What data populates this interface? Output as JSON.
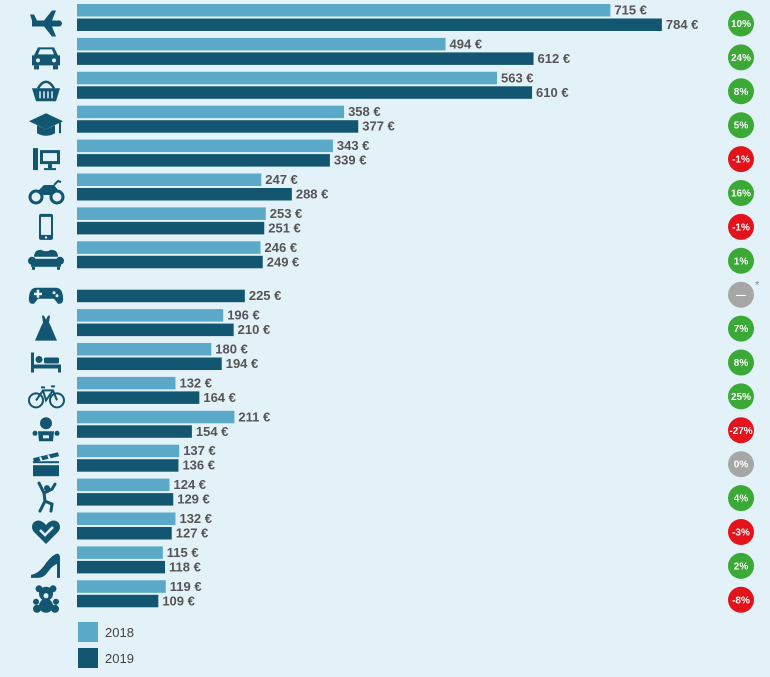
{
  "chart_data": {
    "type": "bar",
    "orientation": "horizontal",
    "categories": [
      "plane-icon",
      "car-icon",
      "shopping-basket-icon",
      "graduation-cap-icon",
      "desktop-computer-icon",
      "motorcycle-icon",
      "smartphone-icon",
      "sofa-icon",
      "gamepad-icon",
      "dress-icon",
      "bed-icon",
      "bicycle-icon",
      "baby-icon",
      "clapperboard-icon",
      "dancer-icon",
      "heart-check-icon",
      "high-heel-icon",
      "teddy-bear-icon"
    ],
    "series": [
      {
        "name": "2018",
        "color": "#5aa9c9",
        "values": [
          715,
          494,
          563,
          358,
          343,
          247,
          253,
          246,
          null,
          196,
          180,
          132,
          211,
          137,
          124,
          132,
          115,
          119
        ]
      },
      {
        "name": "2019",
        "color": "#135672",
        "values": [
          784,
          612,
          610,
          377,
          339,
          288,
          251,
          249,
          225,
          210,
          194,
          164,
          154,
          136,
          129,
          127,
          118,
          109
        ]
      }
    ],
    "value_labels_2018": [
      "715 €",
      "494 €",
      "563 €",
      "358 €",
      "343 €",
      "247 €",
      "253 €",
      "246 €",
      "",
      "196 €",
      "180 €",
      "132 €",
      "211 €",
      "137 €",
      "124 €",
      "132 €",
      "115 €",
      "119 €"
    ],
    "value_labels_2019": [
      "784 €",
      "612 €",
      "610 €",
      "377 €",
      "339 €",
      "288 €",
      "251 €",
      "249 €",
      "225 €",
      "210 €",
      "194 €",
      "164 €",
      "154 €",
      "136 €",
      "129 €",
      "127 €",
      "118 €",
      "109 €"
    ],
    "change_labels": [
      "10%",
      "24%",
      "8%",
      "5%",
      "-1%",
      "16%",
      "-1%",
      "1%",
      "—",
      "7%",
      "8%",
      "25%",
      "-27%",
      "0%",
      "4%",
      "-3%",
      "2%",
      "-8%"
    ],
    "change_colors": [
      "#3aa935",
      "#3aa935",
      "#3aa935",
      "#3aa935",
      "#e3131b",
      "#3aa935",
      "#e3131b",
      "#3aa935",
      "#a6a6a6",
      "#3aa935",
      "#3aa935",
      "#3aa935",
      "#e3131b",
      "#a6a6a6",
      "#3aa935",
      "#e3131b",
      "#3aa935",
      "#e3131b"
    ],
    "footnote_marks": [
      "",
      "",
      "",
      "",
      "",
      "",
      "",
      "",
      "*",
      "",
      "",
      "",
      "",
      "",
      "",
      "",
      "",
      ""
    ],
    "xlim": [
      0,
      850
    ],
    "grid": false,
    "legend": "bottom-left",
    "icon_color": "#135672"
  },
  "legend": [
    {
      "label": "2018",
      "color": "#5aa9c9"
    },
    {
      "label": "2019",
      "color": "#135672"
    }
  ]
}
